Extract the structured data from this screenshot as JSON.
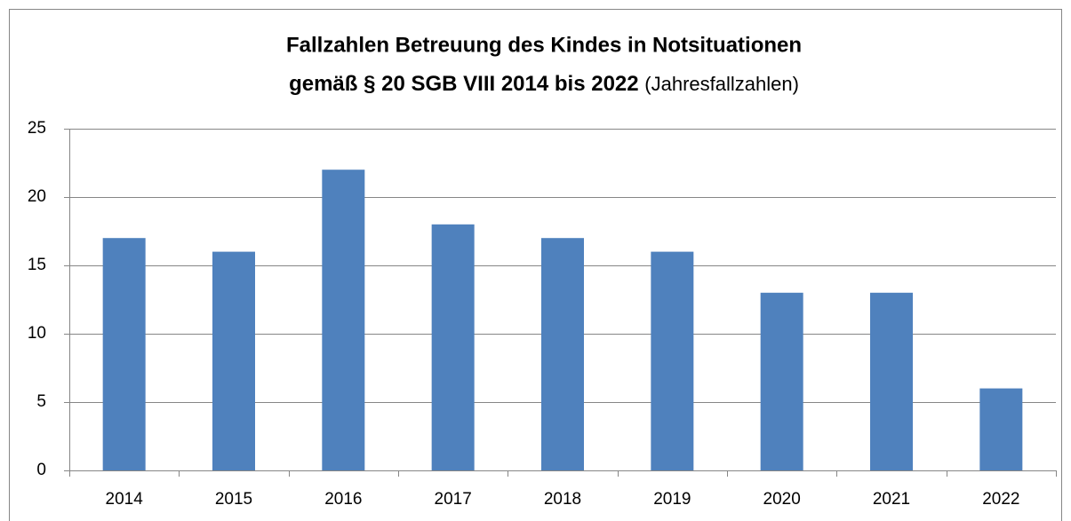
{
  "chart_data": {
    "type": "bar",
    "title": [
      "Fallzahlen Betreuung des Kindes in Notsituationen",
      "gemäß § 20 SGB VIII 2014 bis 2022"
    ],
    "subtitle": "(Jahresfallzahlen)",
    "categories": [
      "2014",
      "2015",
      "2016",
      "2017",
      "2018",
      "2019",
      "2020",
      "2021",
      "2022"
    ],
    "values": [
      17,
      16,
      22,
      18,
      17,
      16,
      13,
      13,
      6
    ],
    "color": "#4f81bd",
    "ylim": [
      0,
      25
    ],
    "yticks": [
      0,
      5,
      10,
      15,
      20,
      25
    ],
    "grid": true
  }
}
